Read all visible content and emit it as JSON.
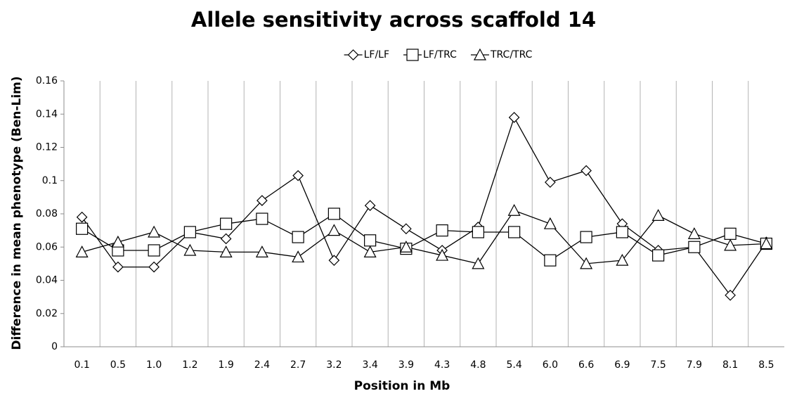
{
  "chart_data": {
    "type": "line",
    "title": "Allele sensitivity across scaffold 14",
    "x_label": "Position in Mb",
    "y_label": "Difference in mean phenotype (Ben-Lim)",
    "categories": [
      "0.1",
      "0.5",
      "1.0",
      "1.2",
      "1.9",
      "2.4",
      "2.7",
      "3.2",
      "3.4",
      "3.9",
      "4.3",
      "4.8",
      "5.4",
      "6.0",
      "6.6",
      "6.9",
      "7.5",
      "7.9",
      "8.1",
      "8.5"
    ],
    "series": [
      {
        "name": "LF/LF",
        "color": "#000000",
        "marker": "diamond",
        "values": [
          0.078,
          0.048,
          0.048,
          0.069,
          0.065,
          0.088,
          0.103,
          0.052,
          0.085,
          0.071,
          0.058,
          0.072,
          0.138,
          0.099,
          0.106,
          0.074,
          0.058,
          0.06,
          0.031,
          0.063
        ]
      },
      {
        "name": "LF/TRC",
        "color": "#000000",
        "marker": "square",
        "values": [
          0.071,
          0.058,
          0.058,
          0.069,
          0.074,
          0.077,
          0.066,
          0.08,
          0.064,
          0.059,
          0.07,
          0.069,
          0.069,
          0.052,
          0.066,
          0.069,
          0.055,
          0.06,
          0.068,
          0.062
        ]
      },
      {
        "name": "TRC/TRC",
        "color": "#000000",
        "marker": "triangle",
        "values": [
          0.057,
          0.063,
          0.069,
          0.058,
          0.057,
          0.057,
          0.054,
          0.07,
          0.057,
          0.06,
          0.055,
          0.05,
          0.082,
          0.074,
          0.05,
          0.052,
          0.079,
          0.068,
          0.061,
          0.062
        ]
      }
    ],
    "ylim": [
      0,
      0.16
    ],
    "yticks": [
      0,
      0.02,
      0.04,
      0.06,
      0.08,
      0.1,
      0.12,
      0.14,
      0.16
    ],
    "grid": true,
    "legend": "top"
  }
}
